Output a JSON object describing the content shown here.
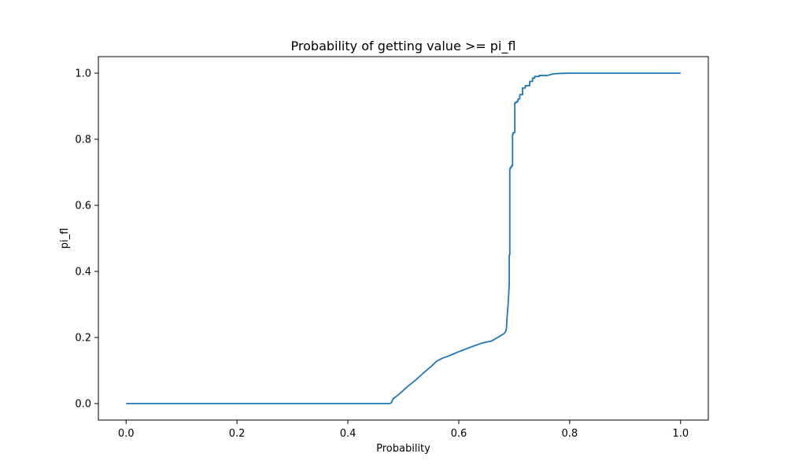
{
  "chart_data": {
    "type": "line",
    "title": "Probability of getting value >= pi_fl",
    "xlabel": "Probability",
    "ylabel": "pi_fl",
    "xlim": [
      -0.05,
      1.05
    ],
    "ylim": [
      -0.05,
      1.05
    ],
    "xticks": [
      0.0,
      0.2,
      0.4,
      0.6,
      0.8,
      1.0
    ],
    "xtick_labels": [
      "0.0",
      "0.2",
      "0.4",
      "0.6",
      "0.8",
      "1.0"
    ],
    "yticks": [
      0.0,
      0.2,
      0.4,
      0.6,
      0.8,
      1.0
    ],
    "ytick_labels": [
      "0.0",
      "0.2",
      "0.4",
      "0.6",
      "0.8",
      "1.0"
    ],
    "grid": false,
    "legend": "none",
    "line_color": "#1f77b4",
    "series": [
      {
        "x": [
          0.0,
          0.475,
          0.478,
          0.482,
          0.49,
          0.5,
          0.51,
          0.52,
          0.53,
          0.54,
          0.55,
          0.56,
          0.57,
          0.58,
          0.59,
          0.6,
          0.62,
          0.64,
          0.66,
          0.67,
          0.675,
          0.68,
          0.683,
          0.685,
          0.686,
          0.687,
          0.688,
          0.689,
          0.69,
          0.691,
          0.691,
          0.692,
          0.692,
          0.693,
          0.693,
          0.695,
          0.695,
          0.697,
          0.697,
          0.698,
          0.698,
          0.701,
          0.701,
          0.703,
          0.703,
          0.705,
          0.705,
          0.707,
          0.707,
          0.71,
          0.71,
          0.715,
          0.715,
          0.72,
          0.72,
          0.728,
          0.728,
          0.733,
          0.733,
          0.737,
          0.737,
          0.745,
          0.745,
          0.76,
          0.77,
          0.78,
          0.8,
          0.9,
          1.0
        ],
        "y": [
          0.0,
          0.0,
          0.002,
          0.015,
          0.025,
          0.04,
          0.055,
          0.068,
          0.083,
          0.098,
          0.112,
          0.128,
          0.137,
          0.143,
          0.15,
          0.157,
          0.17,
          0.182,
          0.19,
          0.2,
          0.205,
          0.21,
          0.214,
          0.22,
          0.23,
          0.26,
          0.28,
          0.3,
          0.33,
          0.36,
          0.45,
          0.45,
          0.71,
          0.71,
          0.715,
          0.715,
          0.72,
          0.72,
          0.815,
          0.815,
          0.82,
          0.82,
          0.91,
          0.91,
          0.912,
          0.912,
          0.915,
          0.915,
          0.922,
          0.922,
          0.935,
          0.935,
          0.955,
          0.955,
          0.962,
          0.962,
          0.975,
          0.975,
          0.985,
          0.985,
          0.99,
          0.99,
          0.993,
          0.993,
          0.998,
          0.999,
          1.0,
          1.0,
          1.0
        ]
      }
    ]
  }
}
